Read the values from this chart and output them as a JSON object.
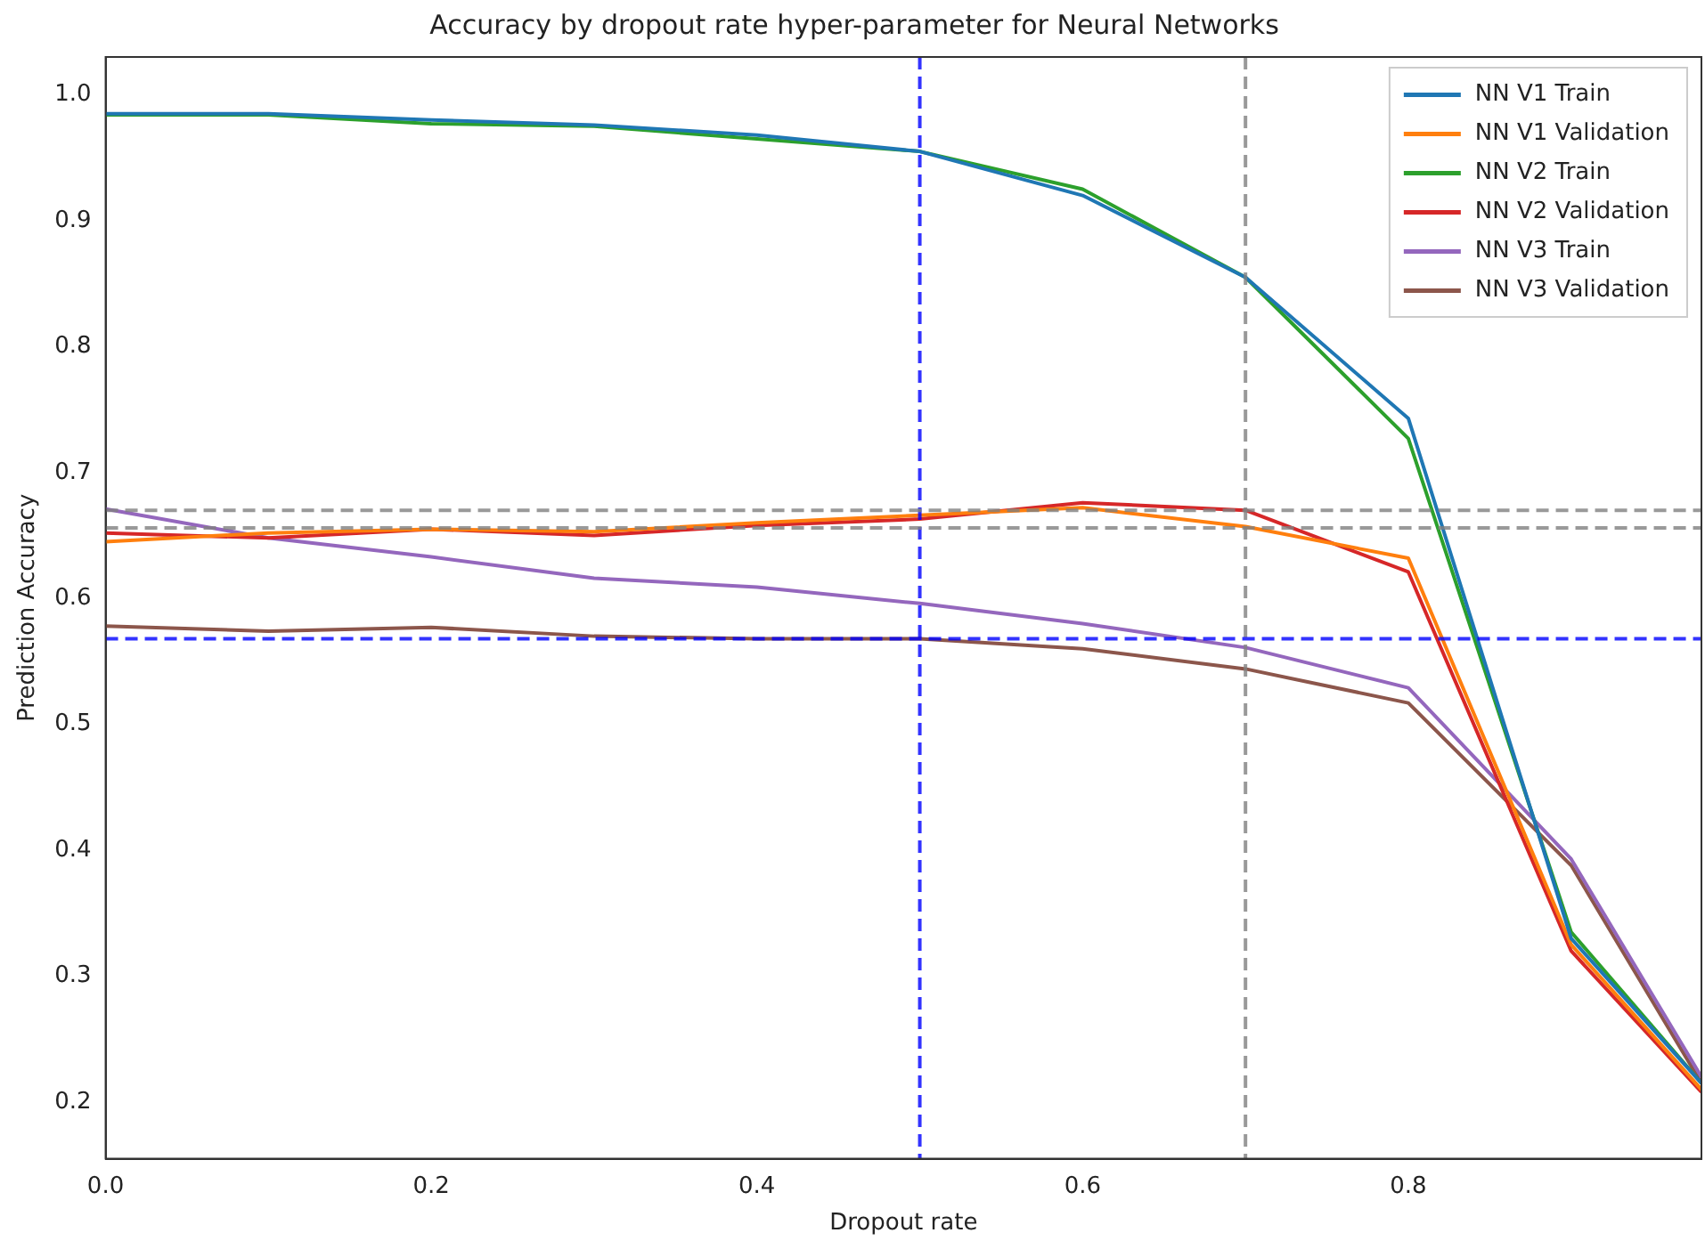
{
  "chart_data": {
    "type": "line",
    "title": "Accuracy by dropout rate hyper-parameter for Neural Networks",
    "xlabel": "Dropout rate",
    "ylabel": "Prediction Accuracy",
    "x": [
      0,
      0.1,
      0.2,
      0.3,
      0.4,
      0.5,
      0.6,
      0.7,
      0.8,
      0.9,
      0.98
    ],
    "series": [
      {
        "name": "NN V1 Train",
        "color": "#1f77b4",
        "values": [
          0.985,
          0.985,
          0.98,
          0.976,
          0.968,
          0.955,
          0.92,
          0.855,
          0.743,
          0.33,
          0.215
        ]
      },
      {
        "name": "NN V1 Validation",
        "color": "#ff7f0e",
        "values": [
          0.645,
          0.652,
          0.655,
          0.653,
          0.66,
          0.666,
          0.672,
          0.657,
          0.632,
          0.325,
          0.21
        ]
      },
      {
        "name": "NN V2 Train",
        "color": "#2ca02c",
        "values": [
          0.984,
          0.984,
          0.977,
          0.975,
          0.965,
          0.955,
          0.925,
          0.855,
          0.727,
          0.335,
          0.215
        ]
      },
      {
        "name": "NN V2 Validation",
        "color": "#d62728",
        "values": [
          0.652,
          0.648,
          0.655,
          0.65,
          0.658,
          0.663,
          0.676,
          0.67,
          0.621,
          0.32,
          0.208
        ]
      },
      {
        "name": "NN V3 Train",
        "color": "#9467bd",
        "values": [
          0.671,
          0.648,
          0.633,
          0.616,
          0.609,
          0.596,
          0.58,
          0.561,
          0.529,
          0.393,
          0.22
        ]
      },
      {
        "name": "NN V3 Validation",
        "color": "#8c564b",
        "values": [
          0.578,
          0.574,
          0.577,
          0.57,
          0.568,
          0.568,
          0.56,
          0.544,
          0.517,
          0.388,
          0.215
        ]
      }
    ],
    "xlim": [
      0,
      0.98
    ],
    "xticks": [
      {
        "value": 0,
        "label": "0.0"
      },
      0.2,
      0.4,
      0.6,
      0.8
    ],
    "ylim": [
      0.155,
      1.03
    ],
    "yticks": [
      0.2,
      0.3,
      0.4,
      0.5,
      0.6,
      0.7,
      0.8,
      0.9,
      {
        "value": 1,
        "label": "1.0"
      }
    ],
    "ref_lines": [
      {
        "axis": "x",
        "value": 0.5,
        "color": "#0000ff",
        "line_style": "dashed"
      },
      {
        "axis": "x",
        "value": 0.7,
        "color": "#808080",
        "line_style": "dashed"
      },
      {
        "axis": "y",
        "value": 0.568,
        "color": "#0000ff",
        "line_style": "dashed"
      },
      {
        "axis": "y",
        "value": 0.67,
        "color": "#808080",
        "line_style": "dashed"
      },
      {
        "axis": "y",
        "value": 0.656,
        "color": "#808080",
        "line_style": "dashed"
      }
    ],
    "grid": false,
    "legend": "top right",
    "marker": "none",
    "line_style": "solid"
  }
}
